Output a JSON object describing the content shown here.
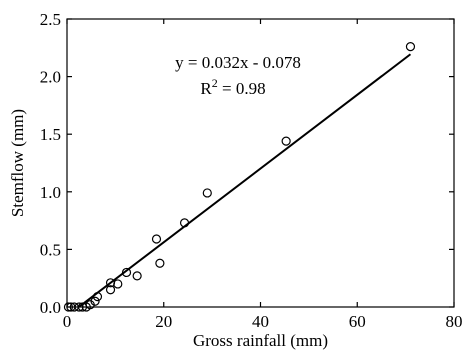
{
  "chart_data": {
    "type": "scatter",
    "xlabel": "Gross rainfall (mm)",
    "ylabel": "Stemflow (mm)",
    "xlim": [
      0,
      80
    ],
    "ylim": [
      0,
      2.5
    ],
    "x_ticks": [
      0,
      20,
      40,
      60,
      80
    ],
    "y_ticks": [
      0.0,
      0.5,
      1.0,
      1.5,
      2.0,
      2.5
    ],
    "x_tick_labels": [
      "0",
      "20",
      "40",
      "60",
      "80"
    ],
    "y_tick_labels": [
      "0.0",
      "0.5",
      "1.0",
      "1.5",
      "2.0",
      "2.5"
    ],
    "grid": false,
    "legend": "none",
    "annotation_equation": "y = 0.032x - 0.078",
    "annotation_r2_prefix": "R",
    "annotation_r2_sup": "2",
    "annotation_r2_suffix": " = 0.98",
    "fit_line": {
      "slope": 0.032,
      "intercept": -0.078,
      "x_start": 2.5,
      "x_end": 71
    },
    "points": [
      {
        "x": 0.3,
        "y": 0.0
      },
      {
        "x": 0.8,
        "y": 0.0
      },
      {
        "x": 1.5,
        "y": 0.0
      },
      {
        "x": 2.5,
        "y": 0.0
      },
      {
        "x": 3.2,
        "y": 0.0
      },
      {
        "x": 4.0,
        "y": 0.0
      },
      {
        "x": 4.8,
        "y": 0.02
      },
      {
        "x": 5.8,
        "y": 0.05
      },
      {
        "x": 6.3,
        "y": 0.09
      },
      {
        "x": 9.0,
        "y": 0.15
      },
      {
        "x": 9.0,
        "y": 0.21
      },
      {
        "x": 10.5,
        "y": 0.2
      },
      {
        "x": 12.3,
        "y": 0.3
      },
      {
        "x": 14.5,
        "y": 0.27
      },
      {
        "x": 18.5,
        "y": 0.59
      },
      {
        "x": 19.2,
        "y": 0.38
      },
      {
        "x": 24.3,
        "y": 0.73
      },
      {
        "x": 29.0,
        "y": 0.99
      },
      {
        "x": 45.3,
        "y": 1.44
      },
      {
        "x": 71.0,
        "y": 2.26
      }
    ],
    "colors": {
      "axis": "#000000",
      "marker": "#000000",
      "line": "#000000"
    }
  }
}
